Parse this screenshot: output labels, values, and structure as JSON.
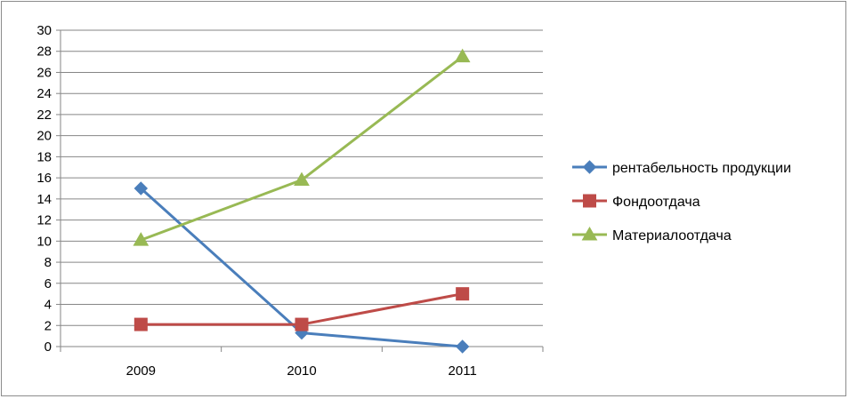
{
  "chart_data": {
    "type": "line",
    "title": "",
    "xlabel": "",
    "ylabel": "",
    "categories": [
      "2009",
      "2010",
      "2011"
    ],
    "ylim": [
      0,
      30
    ],
    "yticks": [
      0,
      2,
      4,
      6,
      8,
      10,
      12,
      14,
      16,
      18,
      20,
      22,
      24,
      26,
      28,
      30
    ],
    "grid": true,
    "legend_position": "right",
    "series": [
      {
        "name": "рентабельность продукции",
        "values": [
          15,
          1.3,
          0
        ],
        "color": "#4a7ebb",
        "marker": "diamond"
      },
      {
        "name": "Фондоотдача",
        "values": [
          2.1,
          2.1,
          5
        ],
        "color": "#be4b48",
        "marker": "square"
      },
      {
        "name": "Материалоотдача",
        "values": [
          10.1,
          15.8,
          27.5
        ],
        "color": "#98b954",
        "marker": "triangle"
      }
    ]
  }
}
